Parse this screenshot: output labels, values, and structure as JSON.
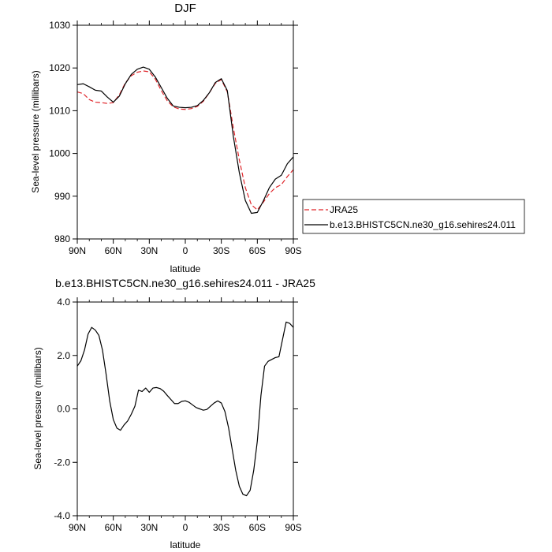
{
  "chart_data": [
    {
      "type": "line",
      "title": "DJF",
      "xlabel": "latitude",
      "ylabel": "Sea-level pressure (millibars)",
      "x_tick_labels": [
        "90N",
        "60N",
        "30N",
        "0",
        "30S",
        "60S",
        "90S"
      ],
      "x_tick_values": [
        90,
        60,
        30,
        0,
        -30,
        -60,
        -90
      ],
      "xlim": [
        90,
        -90
      ],
      "y_tick_labels": [
        "980",
        "990",
        "1000",
        "1010",
        "1020",
        "1030"
      ],
      "y_tick_values": [
        980,
        990,
        1000,
        1010,
        1020,
        1030
      ],
      "ylim": [
        980,
        1030
      ],
      "grid": false,
      "legend_position": "right",
      "series": [
        {
          "name": "JRA25",
          "color": "#e0262b",
          "dash": "dashed",
          "x": [
            90,
            85,
            80,
            75,
            70,
            65,
            60,
            55,
            50,
            45,
            40,
            35,
            30,
            25,
            20,
            15,
            10,
            5,
            0,
            -5,
            -10,
            -15,
            -20,
            -25,
            -30,
            -35,
            -40,
            -45,
            -50,
            -55,
            -60,
            -65,
            -70,
            -75,
            -80,
            -85,
            -90
          ],
          "values": [
            1014.4,
            1014.0,
            1012.6,
            1012.0,
            1011.9,
            1011.7,
            1011.9,
            1013.7,
            1016.5,
            1018.2,
            1019.0,
            1019.3,
            1019.1,
            1017.4,
            1014.7,
            1012.3,
            1010.9,
            1010.4,
            1010.3,
            1010.5,
            1011.0,
            1012.2,
            1014.2,
            1016.4,
            1017.3,
            1014.4,
            1006.0,
            998.5,
            992.0,
            988.0,
            986.8,
            988.6,
            990.6,
            992.0,
            992.7,
            994.6,
            996.2
          ]
        },
        {
          "name": "b.e13.BHISTC5CN.ne30_g16.sehires24.011",
          "color": "#000000",
          "dash": "solid",
          "x": [
            90,
            85,
            80,
            75,
            70,
            65,
            60,
            55,
            50,
            45,
            40,
            35,
            30,
            25,
            20,
            15,
            10,
            5,
            0,
            -5,
            -10,
            -15,
            -20,
            -25,
            -30,
            -35,
            -40,
            -45,
            -50,
            -55,
            -60,
            -65,
            -70,
            -75,
            -80,
            -85,
            -90
          ],
          "values": [
            1016.1,
            1016.3,
            1015.6,
            1014.8,
            1014.6,
            1013.2,
            1012.0,
            1013.4,
            1016.3,
            1018.5,
            1019.7,
            1020.2,
            1019.7,
            1017.9,
            1015.4,
            1012.9,
            1011.1,
            1010.8,
            1010.7,
            1010.8,
            1011.2,
            1012.4,
            1014.2,
            1016.6,
            1017.5,
            1014.7,
            1004.0,
            995.5,
            989.0,
            986.0,
            986.2,
            988.9,
            992.0,
            994.0,
            994.9,
            997.6,
            999.2
          ]
        }
      ]
    },
    {
      "type": "line",
      "title": "b.e13.BHISTC5CN.ne30_g16.sehires24.011 - JRA25",
      "xlabel": "latitude",
      "ylabel": "Sea-level pressure (millibars)",
      "x_tick_labels": [
        "90N",
        "60N",
        "30N",
        "0",
        "30S",
        "60S",
        "90S"
      ],
      "x_tick_values": [
        90,
        60,
        30,
        0,
        -30,
        -60,
        -90
      ],
      "xlim": [
        90,
        -90
      ],
      "y_tick_labels": [
        "-4.0",
        "-2.0",
        "0.0",
        "2.0",
        "4.0"
      ],
      "y_tick_values": [
        -4,
        -2,
        0,
        2,
        4
      ],
      "ylim": [
        -4,
        4
      ],
      "grid": false,
      "series": [
        {
          "color": "#000000",
          "dash": "solid",
          "x": [
            90,
            87,
            84,
            81,
            78,
            75,
            72,
            69,
            66,
            63,
            60,
            57,
            54,
            51,
            48,
            45,
            42,
            39,
            36,
            33,
            30,
            27,
            24,
            21,
            18,
            15,
            12,
            9,
            6,
            3,
            0,
            -3,
            -6,
            -9,
            -12,
            -15,
            -18,
            -21,
            -24,
            -27,
            -30,
            -33,
            -36,
            -39,
            -42,
            -45,
            -48,
            -51,
            -54,
            -57,
            -60,
            -63,
            -66,
            -69,
            -72,
            -75,
            -78,
            -81,
            -84,
            -87,
            -90
          ],
          "values": [
            1.6,
            1.8,
            2.2,
            2.8,
            3.05,
            2.95,
            2.75,
            2.2,
            1.3,
            0.3,
            -0.4,
            -0.72,
            -0.8,
            -0.6,
            -0.45,
            -0.2,
            0.1,
            0.7,
            0.65,
            0.78,
            0.62,
            0.78,
            0.8,
            0.76,
            0.66,
            0.5,
            0.35,
            0.2,
            0.2,
            0.28,
            0.3,
            0.25,
            0.15,
            0.05,
            0.0,
            -0.05,
            -0.02,
            0.1,
            0.22,
            0.3,
            0.22,
            -0.1,
            -0.7,
            -1.5,
            -2.3,
            -2.9,
            -3.2,
            -3.25,
            -3.05,
            -2.3,
            -1.2,
            0.5,
            1.6,
            1.78,
            1.85,
            1.92,
            1.95,
            2.6,
            3.25,
            3.2,
            3.05
          ]
        }
      ]
    }
  ]
}
